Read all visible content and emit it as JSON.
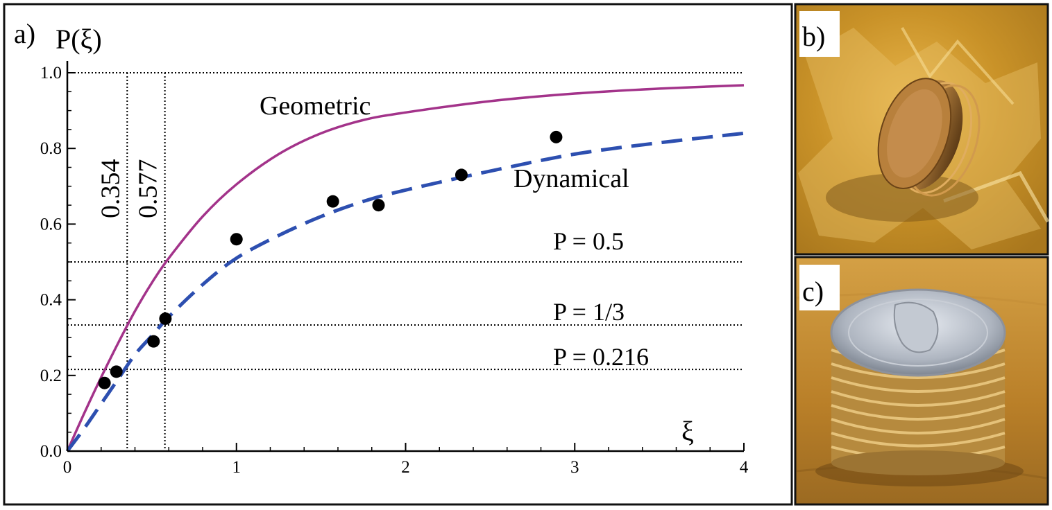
{
  "panels": {
    "a": {
      "label": "a)"
    },
    "b": {
      "label": "b)"
    },
    "c": {
      "label": "c)"
    }
  },
  "chart_data": {
    "type": "line",
    "ylabel": "P(ξ)",
    "xlabel": "ξ",
    "xlim": [
      0,
      4
    ],
    "ylim": [
      0,
      1.0
    ],
    "xticks": [
      "0",
      "1",
      "2",
      "3",
      "4"
    ],
    "yticks": [
      "0.0",
      "0.2",
      "0.4",
      "0.6",
      "0.8",
      "1.0"
    ],
    "grid": false,
    "series": [
      {
        "name": "Geometric",
        "style": "solid",
        "color": "#a3338a",
        "x": [
          0,
          0.1,
          0.2,
          0.3,
          0.4,
          0.5,
          0.6,
          0.8,
          1.0,
          1.25,
          1.5,
          1.75,
          2.0,
          2.5,
          3.0,
          3.5,
          4.0
        ],
        "y": [
          0,
          0.1,
          0.195,
          0.285,
          0.37,
          0.445,
          0.51,
          0.62,
          0.705,
          0.785,
          0.84,
          0.875,
          0.895,
          0.925,
          0.945,
          0.958,
          0.967
        ]
      },
      {
        "name": "Dynamical",
        "style": "dashed",
        "color": "#2d4fb0",
        "x": [
          0,
          0.1,
          0.2,
          0.3,
          0.4,
          0.5,
          0.6,
          0.8,
          1.0,
          1.25,
          1.5,
          1.75,
          2.0,
          2.5,
          3.0,
          3.5,
          4.0
        ],
        "y": [
          0,
          0.06,
          0.125,
          0.19,
          0.255,
          0.305,
          0.355,
          0.44,
          0.51,
          0.57,
          0.62,
          0.66,
          0.69,
          0.74,
          0.785,
          0.815,
          0.84
        ]
      },
      {
        "name": "",
        "style": "markers",
        "color": "#000000",
        "x": [
          0.22,
          0.29,
          0.51,
          0.58,
          1.0,
          1.57,
          1.84,
          2.33,
          2.89
        ],
        "y": [
          0.18,
          0.21,
          0.29,
          0.35,
          0.56,
          0.66,
          0.65,
          0.73,
          0.83
        ]
      }
    ],
    "reference_lines": {
      "horizontal": [
        {
          "y": 1.0,
          "label": ""
        },
        {
          "y": 0.5,
          "label": "P = 0.5"
        },
        {
          "y": 0.3333,
          "label": "P = 1/3"
        },
        {
          "y": 0.216,
          "label": "P = 0.216"
        }
      ],
      "vertical": [
        {
          "x": 0.354,
          "label": "0.354"
        },
        {
          "x": 0.577,
          "label": "0.577"
        }
      ]
    }
  },
  "photos": {
    "b": {
      "subject": "stack of coins standing on edge in crumpled gold foil"
    },
    "c": {
      "subject": "stack of US quarters on a wooden surface"
    }
  }
}
